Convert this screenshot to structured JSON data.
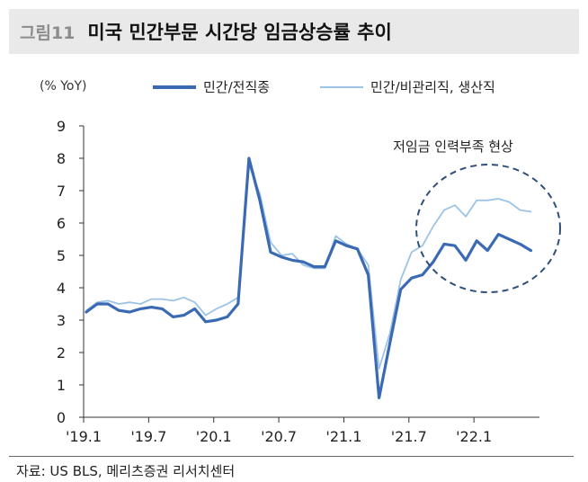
{
  "figure": {
    "label": "그림11",
    "title": "미국 민간부문 시간당 임금상승률 추이",
    "source": "자료: US BLS, 메리츠증권 리서치센터"
  },
  "colors": {
    "series1": "#3a6ab3",
    "series2": "#9dc3e6",
    "annotation": "#2f4f7a"
  },
  "chart_data": {
    "type": "line",
    "ylabel": "(% YoY)",
    "ylim": [
      0,
      9
    ],
    "yticks": [
      "0",
      "1",
      "2",
      "3",
      "4",
      "5",
      "6",
      "7",
      "8",
      "9"
    ],
    "xticks": [
      {
        "label": "'19.1",
        "index": 0
      },
      {
        "label": "'19.7",
        "index": 6
      },
      {
        "label": "'20.1",
        "index": 12
      },
      {
        "label": "'20.7",
        "index": 18
      },
      {
        "label": "'21.1",
        "index": 24
      },
      {
        "label": "'21.7",
        "index": 30
      },
      {
        "label": "'22.1",
        "index": 36
      }
    ],
    "n_points": 42,
    "series": [
      {
        "name": "민간/전직종",
        "values": [
          3.25,
          3.5,
          3.5,
          3.3,
          3.25,
          3.35,
          3.4,
          3.35,
          3.1,
          3.15,
          3.35,
          2.95,
          3.0,
          3.1,
          3.5,
          8.0,
          6.7,
          5.1,
          4.95,
          4.85,
          4.8,
          4.65,
          4.65,
          5.45,
          5.3,
          5.2,
          4.4,
          0.6,
          2.3,
          3.95,
          4.3,
          4.4,
          4.8,
          5.35,
          5.3,
          4.85,
          5.45,
          5.15,
          5.65,
          5.5,
          5.35,
          5.15
        ]
      },
      {
        "name": "민간/비관리직, 생산직",
        "values": [
          3.3,
          3.55,
          3.6,
          3.5,
          3.55,
          3.5,
          3.65,
          3.65,
          3.6,
          3.7,
          3.55,
          3.15,
          3.35,
          3.5,
          3.7,
          7.8,
          6.9,
          5.4,
          5.0,
          5.05,
          4.7,
          4.6,
          4.6,
          5.6,
          5.35,
          5.2,
          4.7,
          1.5,
          2.6,
          4.25,
          5.1,
          5.3,
          5.9,
          6.4,
          6.55,
          6.2,
          6.7,
          6.7,
          6.75,
          6.65,
          6.4,
          6.35
        ]
      }
    ],
    "annotation": {
      "text": "저임금 인력부족 현상"
    }
  }
}
